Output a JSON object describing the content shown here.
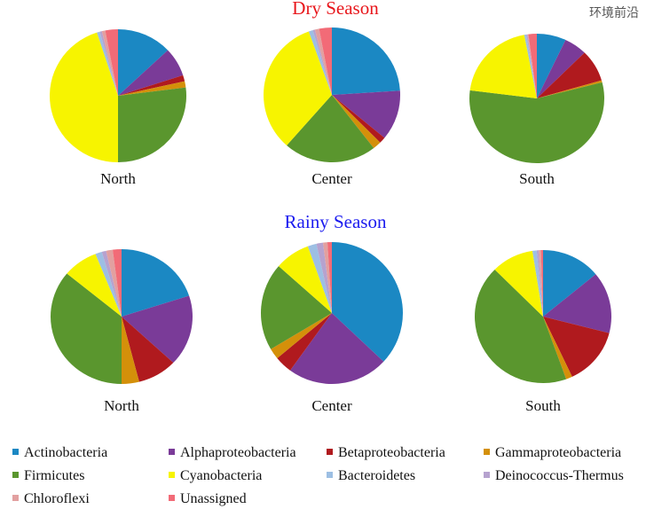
{
  "chart_data": {
    "type": "pie",
    "categories": [
      "Actinobacteria",
      "Alphaproteobacteria",
      "Betaproteobacteria",
      "Gammaproteobacteria",
      "Firmicutes",
      "Cyanobacteria",
      "Bacteroidetes",
      "Deinococcus-Thermus",
      "Chloroflexi",
      "Unassigned"
    ],
    "colors": [
      "#1b88c3",
      "#7a3b98",
      "#b01a1e",
      "#d4900a",
      "#5a962e",
      "#f7f400",
      "#9dbfe3",
      "#b6a2cf",
      "#e2a0a0",
      "#f26b77"
    ],
    "groups": [
      {
        "title": "Dry Season",
        "title_color": "#e8161b",
        "charts": [
          {
            "label": "North",
            "values": [
              13,
              7,
              1.5,
              1.5,
              27,
              45,
              0.7,
              0.5,
              0.8,
              3
            ]
          },
          {
            "label": "Center",
            "values": [
              24,
              12,
              1.5,
              2,
              22,
              33,
              1,
              0.5,
              1,
              3
            ]
          },
          {
            "label": "South",
            "values": [
              7,
              5.5,
              8,
              0.5,
              56,
              20,
              0.5,
              0.3,
              0.2,
              2
            ]
          }
        ]
      },
      {
        "title": "Rainy Season",
        "title_color": "#1b1bef",
        "charts": [
          {
            "label": "North",
            "values": [
              20,
              17,
              9,
              4,
              36,
              8,
              1.5,
              1,
              1.5,
              2
            ]
          },
          {
            "label": "Center",
            "values": [
              37,
              23,
              4,
              2.5,
              20,
              8,
              2,
              1.5,
              1,
              1
            ]
          },
          {
            "label": "South",
            "values": [
              14,
              15,
              14,
              1.5,
              43,
              10,
              1,
              0.5,
              0.5,
              0.5
            ]
          }
        ]
      }
    ],
    "units": "percent (estimated)",
    "legend": "bottom"
  },
  "watermark": "环境前沿"
}
